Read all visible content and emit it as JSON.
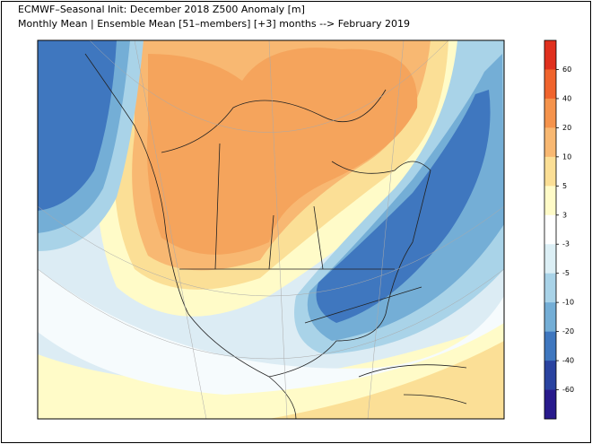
{
  "header": {
    "title_line_1": "ECMWF–Seasonal Init: December 2018 Z500 Anomaly [m]",
    "title_line_2": "Monthly Mean | Ensemble Mean [51–members] [+3] months --> February 2019"
  },
  "colorbar": {
    "levels": [
      60,
      40,
      20,
      10,
      5,
      3,
      -3,
      -5,
      -10,
      -20,
      -40,
      -60
    ],
    "colors": [
      "#e0301e",
      "#f0642d",
      "#f5934c",
      "#f8b872",
      "#fbdf96",
      "#fffbc8",
      "#ffffff",
      "#dcefF5",
      "#a9d3e8",
      "#74aed6",
      "#3f77bf",
      "#2a43a0",
      "#281a8c"
    ]
  }
}
